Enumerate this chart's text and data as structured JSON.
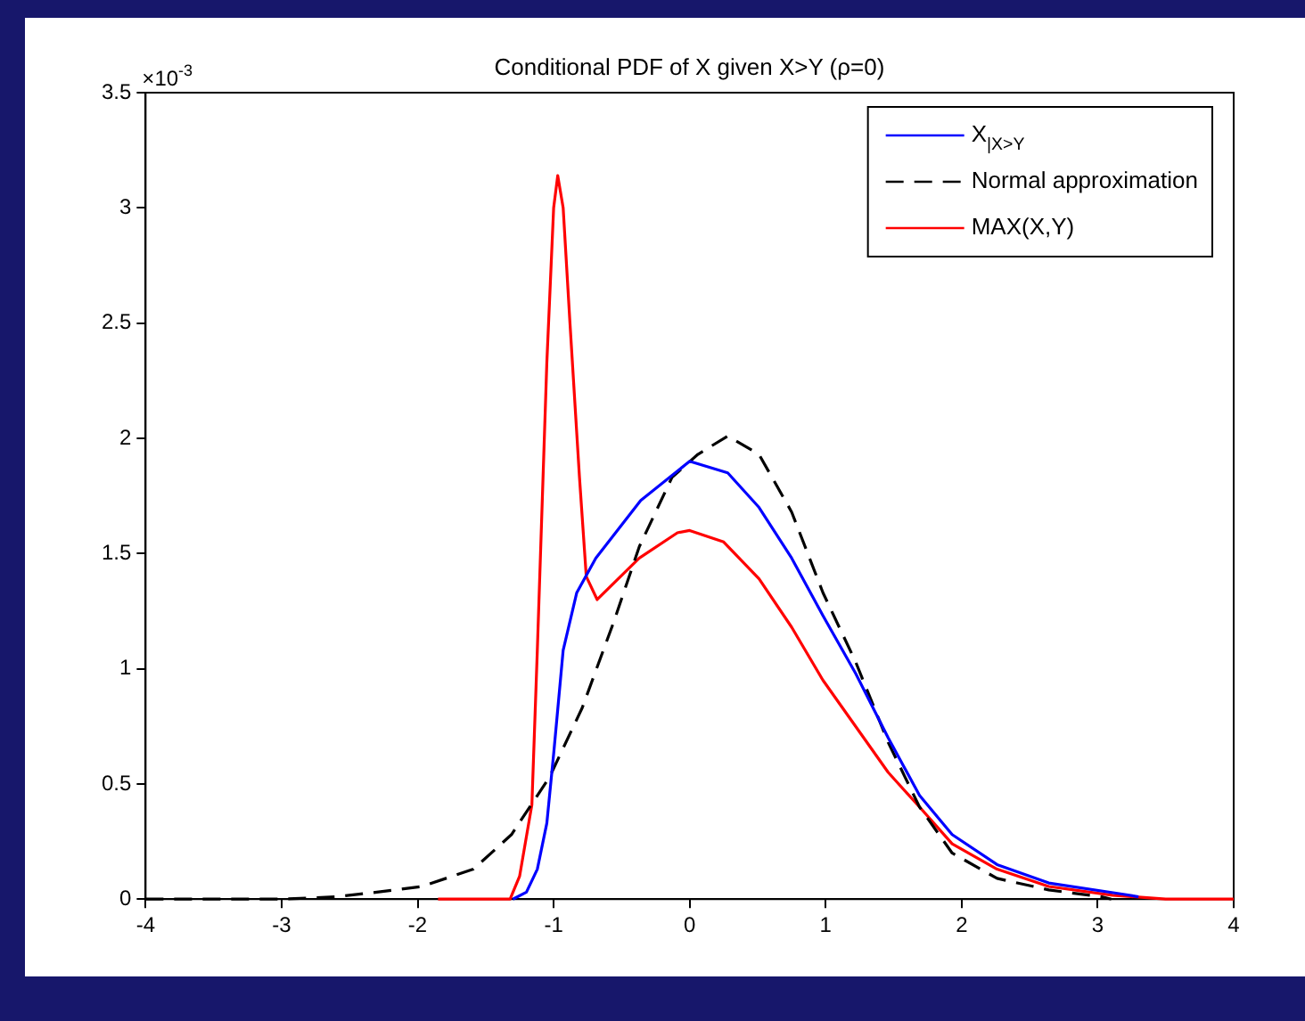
{
  "chart_data": {
    "type": "line",
    "title": "Conditional PDF of X given X>Y (ρ=0)",
    "annotations": [
      "×10$^{-3}$"
    ],
    "xlim": [
      -4,
      4
    ],
    "xticks": [
      -4,
      -3,
      -2,
      -1,
      0,
      1,
      2,
      3,
      4
    ],
    "ylim": [
      0,
      3.5
    ],
    "yticks": [
      0,
      0.5,
      1,
      1.5,
      2,
      2.5,
      3,
      3.5
    ],
    "grid": false,
    "legend": "top right",
    "marker": "none",
    "series": [
      {
        "name": "X$_{|X>Y}$",
        "color": "#0000ff",
        "line_style": "solid",
        "x": [
          -1.3,
          -1.2,
          -1.12,
          -1.05,
          -1.0,
          -0.93,
          -0.83,
          -0.69,
          -0.36,
          0.0,
          0.28,
          0.51,
          0.75,
          0.98,
          1.22,
          1.46,
          1.69,
          1.93,
          2.26,
          2.64,
          3.2,
          3.3
        ],
        "values": [
          0,
          0.03,
          0.13,
          0.33,
          0.63,
          1.08,
          1.33,
          1.48,
          1.73,
          1.9,
          1.85,
          1.7,
          1.48,
          1.23,
          0.98,
          0.7,
          0.45,
          0.28,
          0.15,
          0.07,
          0.02,
          0.01
        ]
      },
      {
        "name": "Normal approximation",
        "color": "#000000",
        "line_style": "dashed",
        "x": [
          -4,
          -3,
          -2.6,
          -2.3,
          -1.97,
          -1.59,
          -1.31,
          -1.03,
          -0.79,
          -0.56,
          -0.37,
          -0.13,
          0.06,
          0.28,
          0.51,
          0.75,
          0.98,
          1.22,
          1.46,
          1.69,
          1.93,
          2.26,
          2.64,
          3.03,
          3.1
        ],
        "values": [
          0,
          0,
          0.01,
          0.03,
          0.055,
          0.13,
          0.28,
          0.53,
          0.83,
          1.2,
          1.53,
          1.83,
          1.93,
          2.01,
          1.93,
          1.68,
          1.33,
          1.03,
          0.68,
          0.4,
          0.2,
          0.09,
          0.04,
          0.01,
          0
        ]
      },
      {
        "name": "MAX(X,Y)",
        "color": "#ff0000",
        "line_style": "solid",
        "x": [
          -1.85,
          -1.32,
          -1.25,
          -1.16,
          -1.12,
          -1.05,
          -1.0,
          -0.97,
          -0.93,
          -0.88,
          -0.81,
          -0.76,
          -0.68,
          -0.37,
          -0.09,
          0.0,
          0.25,
          0.51,
          0.75,
          0.98,
          1.22,
          1.46,
          1.69,
          1.93,
          2.26,
          2.64,
          3.11,
          3.5,
          4.0
        ],
        "values": [
          0,
          0,
          0.1,
          0.41,
          1.08,
          2.33,
          3.0,
          3.14,
          3.0,
          2.5,
          1.83,
          1.4,
          1.3,
          1.48,
          1.59,
          1.6,
          1.55,
          1.39,
          1.18,
          0.95,
          0.75,
          0.55,
          0.4,
          0.24,
          0.13,
          0.055,
          0.017,
          0,
          0
        ]
      }
    ]
  }
}
